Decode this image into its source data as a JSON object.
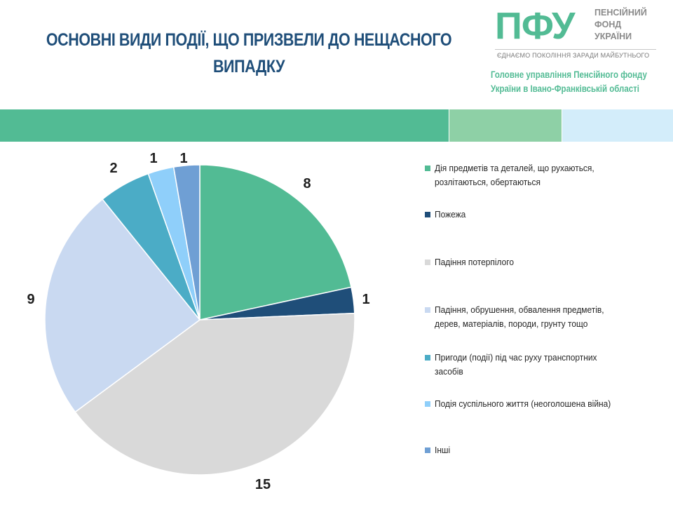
{
  "title": {
    "line1": "ОСНОВНІ ВИДИ ПОДІЇ, ЩО ПРИЗВЕЛИ ДО НЕЩАСНОГО",
    "line2": "ВИПАДКУ"
  },
  "logo": {
    "mark": "ПФУ",
    "name_lines": [
      "ПЕНСІЙНИЙ",
      "ФОНД",
      "УКРАЇНИ"
    ],
    "slogan": "ЄДНАЄМО ПОКОЛІННЯ ЗАРАДИ МАЙБУТНЬОГО",
    "color": "#52bb94"
  },
  "org": {
    "line1": "Головне управління Пенсійного фонду",
    "line2": "України  в Івано-Франківській області"
  },
  "chart_data": {
    "type": "pie",
    "title": "ОСНОВНІ ВИДИ ПОДІЇ, ЩО ПРИЗВЕЛИ ДО НЕЩАСНОГО ВИПАДКУ",
    "legend_position": "right",
    "categories": [
      "Дія предметів та деталей, що рухаються, розлітаються, обертаються",
      "Пожежа",
      "Падіння потерпілого",
      "Падіння, обрушення, обвалення предметів, дерев, матеріалів, породи, грунту тощо",
      "Пригоди (події) під час руху транспортних засобів",
      "Подія суспільного життя (неоголошена війна)",
      "Інші"
    ],
    "legend_lines": [
      [
        "Дія предметів та деталей, що рухаються,",
        "розлітаються, обертаються"
      ],
      [
        "Пожежа"
      ],
      [
        "Падіння потерпілого"
      ],
      [
        "Падіння, обрушення, обвалення предметів,",
        "дерев, матеріалів, породи, грунту тощо"
      ],
      [
        "Пригоди (події) під час руху транспортних",
        "засобів"
      ],
      [
        "Подія суспільного життя (неоголошена війна)"
      ],
      [
        "Інші"
      ]
    ],
    "values": [
      8,
      1,
      15,
      9,
      2,
      1,
      1
    ],
    "colors": [
      "#52bb94",
      "#1f4e79",
      "#d9d9d9",
      "#c9d9f1",
      "#4bacc6",
      "#8fcffa",
      "#6f9fd4"
    ]
  }
}
